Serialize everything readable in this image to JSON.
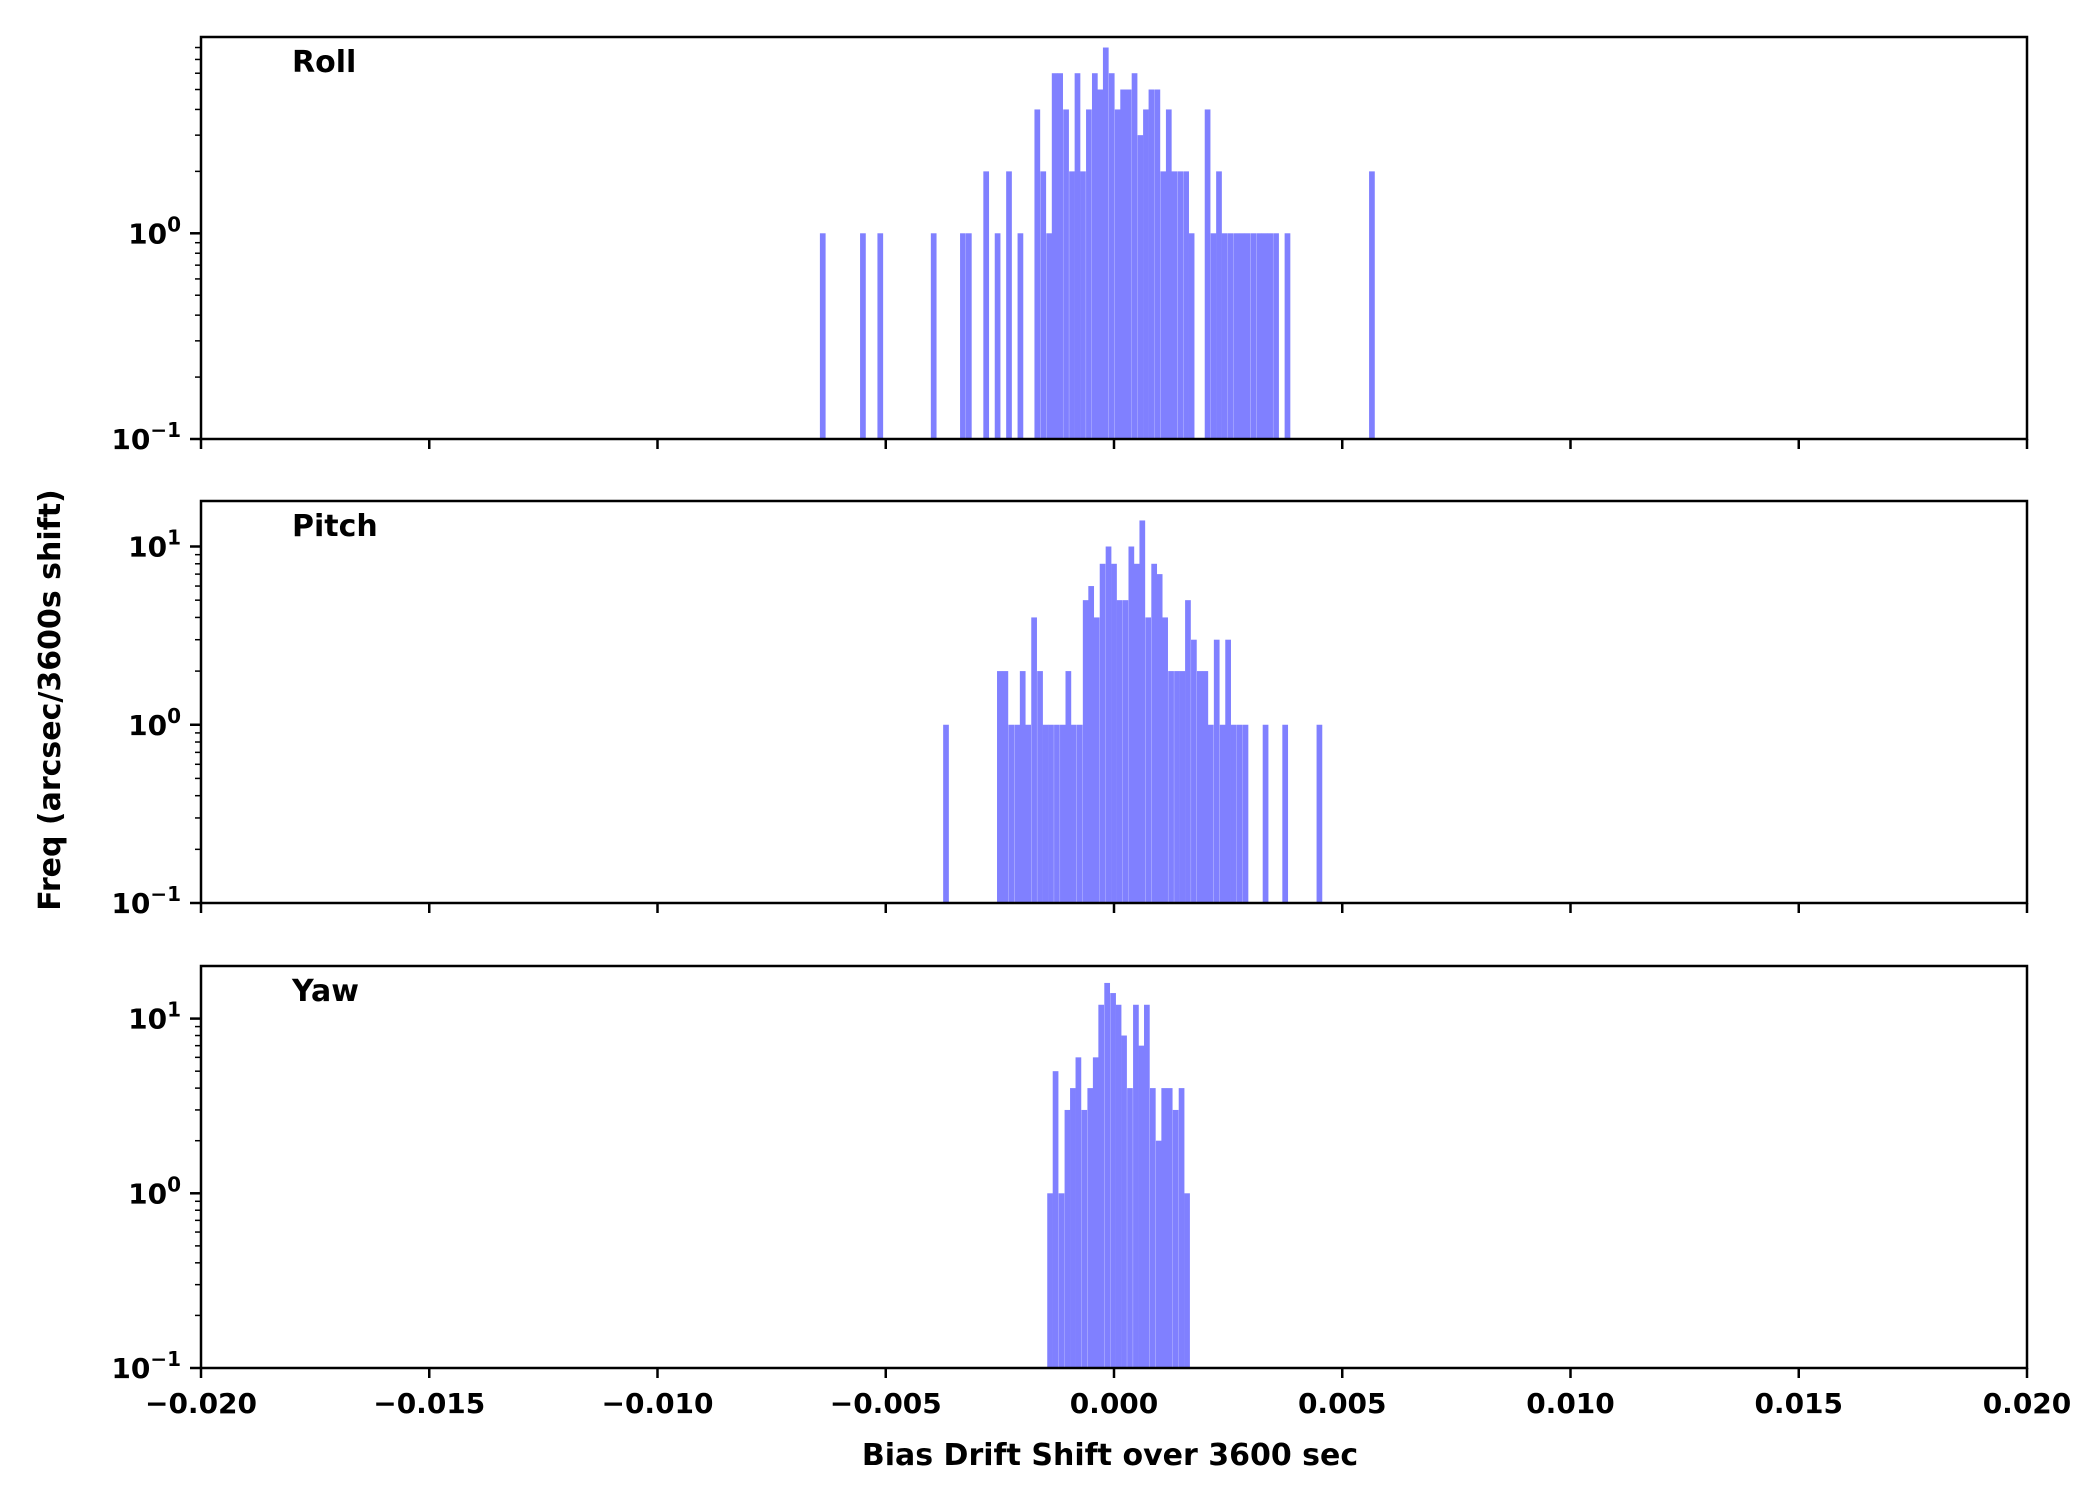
{
  "figure": {
    "xlabel": "Bias Drift Shift over 3600 sec",
    "ylabel": "Freq (arcsec/3600s shift)",
    "bar_color": "#8080ff"
  },
  "chart_data": [
    {
      "type": "bar",
      "label": "Roll",
      "yscale": "log",
      "xlim": [
        -0.02,
        0.02
      ],
      "ylim": [
        0.1,
        9
      ],
      "x_ticks": [
        "−0.020",
        "−0.015",
        "−0.010",
        "−0.005",
        "0.000",
        "0.005",
        "0.010",
        "0.015",
        "0.020"
      ],
      "x_tick_values": [
        -0.02,
        -0.015,
        -0.01,
        -0.005,
        0.0,
        0.005,
        0.01,
        0.015,
        0.02
      ],
      "y_ticks": [
        {
          "base": "10",
          "exp": "−1",
          "value": 0.1
        },
        {
          "base": "10",
          "exp": "0",
          "value": 1
        }
      ],
      "bin_width": 0.000125,
      "bins": [
        [
          -0.00638,
          1
        ],
        [
          -0.0055,
          1
        ],
        [
          -0.00512,
          1
        ],
        [
          -0.00395,
          1
        ],
        [
          -0.00331,
          1
        ],
        [
          -0.00318,
          1
        ],
        [
          -0.0028,
          2
        ],
        [
          -0.00255,
          1
        ],
        [
          -0.0023,
          2
        ],
        [
          -0.00205,
          1
        ],
        [
          -0.00168,
          4
        ],
        [
          -0.00155,
          2
        ],
        [
          -0.00142,
          1
        ],
        [
          -0.0013,
          6
        ],
        [
          -0.00118,
          6
        ],
        [
          -0.00105,
          4
        ],
        [
          -0.00092,
          2
        ],
        [
          -0.0008,
          6
        ],
        [
          -0.00068,
          2
        ],
        [
          -0.00055,
          4
        ],
        [
          -0.00042,
          6
        ],
        [
          -0.0003,
          5
        ],
        [
          -0.00018,
          8
        ],
        [
          -5e-05,
          6
        ],
        [
          8e-05,
          4
        ],
        [
          0.0002,
          5
        ],
        [
          0.00032,
          5
        ],
        [
          0.00045,
          6
        ],
        [
          0.00058,
          3
        ],
        [
          0.0007,
          4
        ],
        [
          0.00082,
          5
        ],
        [
          0.00095,
          5
        ],
        [
          0.00108,
          2
        ],
        [
          0.0012,
          4
        ],
        [
          0.00132,
          2
        ],
        [
          0.00145,
          2
        ],
        [
          0.00158,
          2
        ],
        [
          0.0017,
          1
        ],
        [
          0.00205,
          4
        ],
        [
          0.00218,
          1
        ],
        [
          0.0023,
          2
        ],
        [
          0.00242,
          1
        ],
        [
          0.00255,
          1
        ],
        [
          0.00268,
          1
        ],
        [
          0.0028,
          1
        ],
        [
          0.00292,
          1
        ],
        [
          0.00305,
          1
        ],
        [
          0.00318,
          1
        ],
        [
          0.0033,
          1
        ],
        [
          0.00342,
          1
        ],
        [
          0.00355,
          1
        ],
        [
          0.0038,
          1
        ],
        [
          0.00565,
          2
        ]
      ]
    },
    {
      "type": "bar",
      "label": "Pitch",
      "yscale": "log",
      "xlim": [
        -0.02,
        0.02
      ],
      "ylim": [
        0.1,
        18
      ],
      "x_ticks": [
        "−0.020",
        "−0.015",
        "−0.010",
        "−0.005",
        "0.000",
        "0.005",
        "0.010",
        "0.015",
        "0.020"
      ],
      "x_tick_values": [
        -0.02,
        -0.015,
        -0.01,
        -0.005,
        0.0,
        0.005,
        0.01,
        0.015,
        0.02
      ],
      "y_ticks": [
        {
          "base": "10",
          "exp": "−1",
          "value": 0.1
        },
        {
          "base": "10",
          "exp": "0",
          "value": 1
        },
        {
          "base": "10",
          "exp": "1",
          "value": 10
        }
      ],
      "bin_width": 0.000125,
      "bins": [
        [
          -0.00368,
          1
        ],
        [
          -0.0025,
          2
        ],
        [
          -0.00238,
          2
        ],
        [
          -0.00225,
          1
        ],
        [
          -0.00212,
          1
        ],
        [
          -0.002,
          2
        ],
        [
          -0.00188,
          1
        ],
        [
          -0.00175,
          4
        ],
        [
          -0.00162,
          2
        ],
        [
          -0.0015,
          1
        ],
        [
          -0.00138,
          1
        ],
        [
          -0.00125,
          1
        ],
        [
          -0.00112,
          1
        ],
        [
          -0.001,
          2
        ],
        [
          -0.00088,
          1
        ],
        [
          -0.00075,
          1
        ],
        [
          -0.00062,
          5
        ],
        [
          -0.0005,
          6
        ],
        [
          -0.00038,
          4
        ],
        [
          -0.00025,
          8
        ],
        [
          -0.00012,
          10
        ],
        [
          0.0,
          8
        ],
        [
          0.00012,
          5
        ],
        [
          0.00025,
          5
        ],
        [
          0.00038,
          10
        ],
        [
          0.0005,
          8
        ],
        [
          0.00062,
          14
        ],
        [
          0.00075,
          4
        ],
        [
          0.00088,
          8
        ],
        [
          0.001,
          7
        ],
        [
          0.00112,
          4
        ],
        [
          0.00125,
          2
        ],
        [
          0.00138,
          2
        ],
        [
          0.0015,
          2
        ],
        [
          0.00162,
          5
        ],
        [
          0.00175,
          3
        ],
        [
          0.00188,
          2
        ],
        [
          0.002,
          2
        ],
        [
          0.00212,
          1
        ],
        [
          0.00225,
          3
        ],
        [
          0.00238,
          1
        ],
        [
          0.0025,
          3
        ],
        [
          0.00262,
          1
        ],
        [
          0.00275,
          1
        ],
        [
          0.00288,
          1
        ],
        [
          0.00332,
          1
        ],
        [
          0.00375,
          1
        ],
        [
          0.0045,
          1
        ]
      ]
    },
    {
      "type": "bar",
      "label": "Yaw",
      "yscale": "log",
      "xlim": [
        -0.02,
        0.02
      ],
      "ylim": [
        0.1,
        20
      ],
      "x_ticks": [
        "−0.020",
        "−0.015",
        "−0.010",
        "−0.005",
        "0.000",
        "0.005",
        "0.010",
        "0.015",
        "0.020"
      ],
      "x_tick_values": [
        -0.02,
        -0.015,
        -0.01,
        -0.005,
        0.0,
        0.005,
        0.01,
        0.015,
        0.02
      ],
      "y_ticks": [
        {
          "base": "10",
          "exp": "−1",
          "value": 0.1
        },
        {
          "base": "10",
          "exp": "0",
          "value": 1
        },
        {
          "base": "10",
          "exp": "1",
          "value": 10
        }
      ],
      "bin_width": 0.000125,
      "bins": [
        [
          -0.0014,
          1
        ],
        [
          -0.00128,
          5
        ],
        [
          -0.00115,
          1
        ],
        [
          -0.00102,
          3
        ],
        [
          -0.0009,
          4
        ],
        [
          -0.00078,
          6
        ],
        [
          -0.00065,
          3
        ],
        [
          -0.00052,
          4
        ],
        [
          -0.0004,
          6
        ],
        [
          -0.00028,
          12
        ],
        [
          -0.00015,
          16
        ],
        [
          -2e-05,
          14
        ],
        [
          0.0001,
          12
        ],
        [
          0.00022,
          8
        ],
        [
          0.00035,
          4
        ],
        [
          0.00048,
          12
        ],
        [
          0.0006,
          7
        ],
        [
          0.00072,
          12
        ],
        [
          0.00085,
          4
        ],
        [
          0.00098,
          2
        ],
        [
          0.0011,
          4
        ],
        [
          0.00122,
          4
        ],
        [
          0.00135,
          3
        ],
        [
          0.00148,
          4
        ],
        [
          0.0016,
          1
        ]
      ]
    }
  ]
}
